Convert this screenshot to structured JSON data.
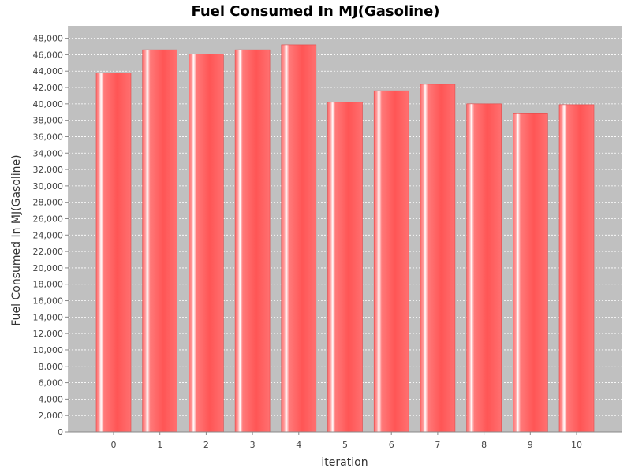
{
  "chart_data": {
    "type": "bar",
    "title": "Fuel Consumed In MJ(Gasoline)",
    "xlabel": "iteration",
    "ylabel": "Fuel Consumed In MJ(Gasoline)",
    "categories": [
      "0",
      "1",
      "2",
      "3",
      "4",
      "5",
      "6",
      "7",
      "8",
      "9",
      "10"
    ],
    "values": [
      43800,
      46600,
      46100,
      46600,
      47200,
      40200,
      41600,
      42400,
      40000,
      38800,
      39900
    ],
    "ylim": [
      0,
      49500
    ],
    "yticks": [
      0,
      2000,
      4000,
      6000,
      8000,
      10000,
      12000,
      14000,
      16000,
      18000,
      20000,
      22000,
      24000,
      26000,
      28000,
      30000,
      32000,
      34000,
      36000,
      38000,
      40000,
      42000,
      44000,
      46000,
      48000
    ],
    "grid": true,
    "legend": "none",
    "colors": {
      "plot_background": "#c0c0c0",
      "bar": "#ff5555",
      "bar_highlight": "#ffffff",
      "gridline": "#ffffff"
    }
  }
}
